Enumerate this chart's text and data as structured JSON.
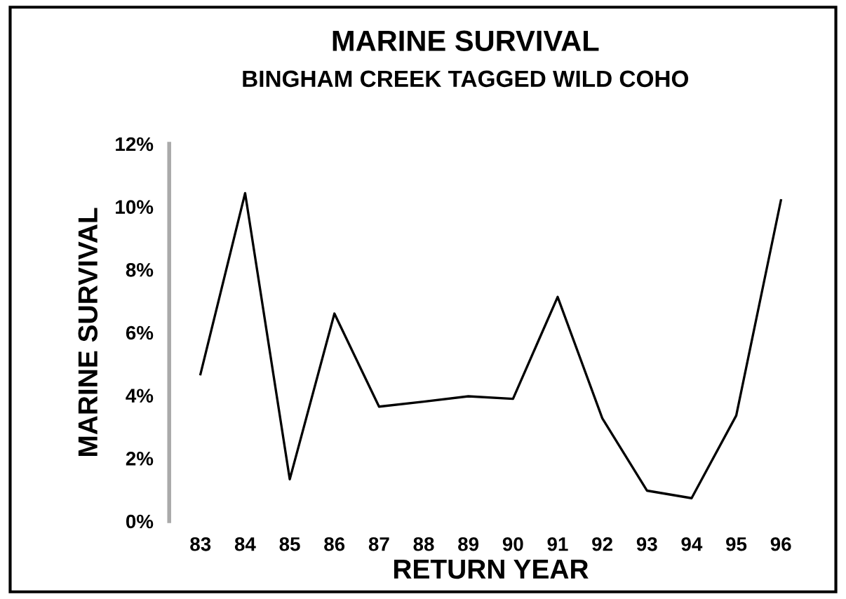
{
  "chart_data": {
    "type": "line",
    "title": "MARINE SURVIVAL",
    "subtitle": "BINGHAM CREEK TAGGED WILD COHO",
    "xlabel": "RETURN YEAR",
    "ylabel": "MARINE SURVIVAL",
    "categories": [
      "83",
      "84",
      "85",
      "86",
      "87",
      "88",
      "89",
      "90",
      "91",
      "92",
      "93",
      "94",
      "95",
      "96"
    ],
    "series": [
      {
        "color": "#000000",
        "values": [
          4.67,
          10.43,
          1.33,
          6.6,
          3.64,
          3.8,
          3.97,
          3.89,
          7.13,
          3.27,
          0.97,
          0.73,
          3.36,
          10.2
        ]
      }
    ],
    "ylim": [
      0,
      12
    ],
    "yticks": [
      {
        "value": 0,
        "label": "0%"
      },
      {
        "value": 2,
        "label": "2%"
      },
      {
        "value": 4,
        "label": "4%"
      },
      {
        "value": 6,
        "label": "6%"
      },
      {
        "value": 8,
        "label": "8%"
      },
      {
        "value": 10,
        "label": "10%"
      },
      {
        "value": 12,
        "label": "12%"
      }
    ],
    "grid": false,
    "marker": "none",
    "line_style": "solid"
  }
}
